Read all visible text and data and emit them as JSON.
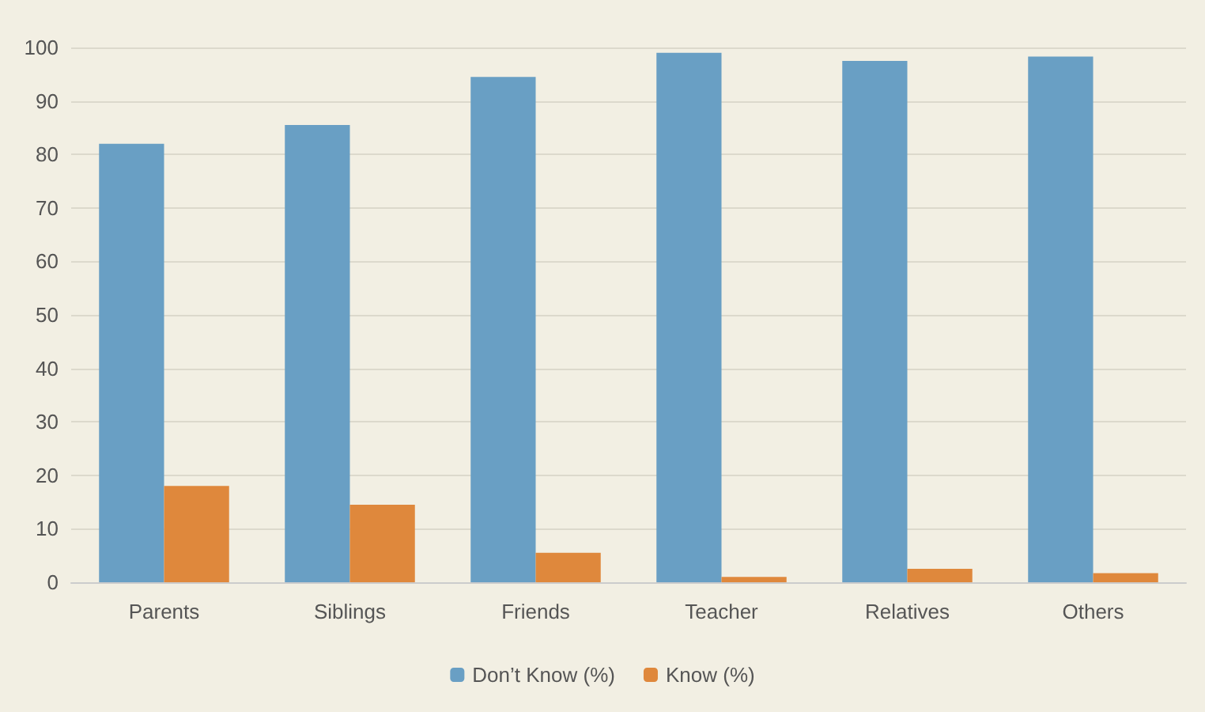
{
  "chart_data": {
    "type": "bar",
    "categories": [
      "Parents",
      "Siblings",
      "Friends",
      "Teacher",
      "Relatives",
      "Others"
    ],
    "series": [
      {
        "name": "Don’t Know (%)",
        "color": "#699fc4",
        "values": [
          82,
          85.5,
          94.5,
          99,
          97.5,
          98.3
        ]
      },
      {
        "name": "Know (%)",
        "color": "#df883c",
        "values": [
          18,
          14.5,
          5.5,
          1,
          2.5,
          1.7
        ]
      }
    ],
    "ylim": [
      0,
      100
    ],
    "yticks": [
      0,
      10,
      20,
      30,
      40,
      50,
      60,
      70,
      80,
      90,
      100
    ],
    "grid": "y",
    "legend": "bottom"
  }
}
